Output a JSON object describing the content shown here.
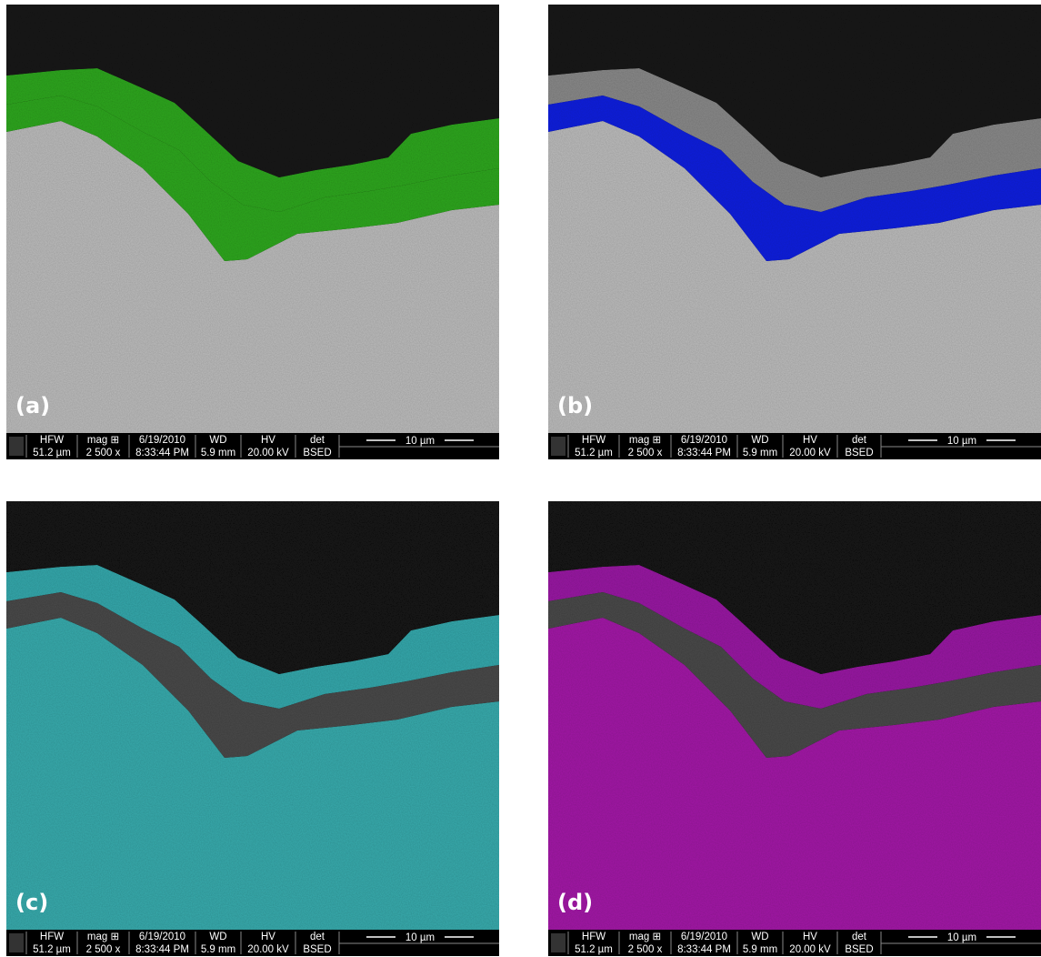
{
  "panels": [
    {
      "label": "(a)"
    },
    {
      "label": "(b)"
    },
    {
      "label": "(c)"
    },
    {
      "label": "(d)"
    }
  ],
  "info_bar": {
    "fields": [
      {
        "name": "HFW",
        "value": "51.2 µm"
      },
      {
        "name": "mag ⊞",
        "value": "2 500 x"
      },
      {
        "name": "6/19/2010",
        "value": "8:33:44 PM"
      },
      {
        "name": "WD",
        "value": "5.9 mm"
      },
      {
        "name": "HV",
        "value": "20.00 kV"
      },
      {
        "name": "det",
        "value": "BSED"
      }
    ],
    "scale": "10 µm"
  }
}
